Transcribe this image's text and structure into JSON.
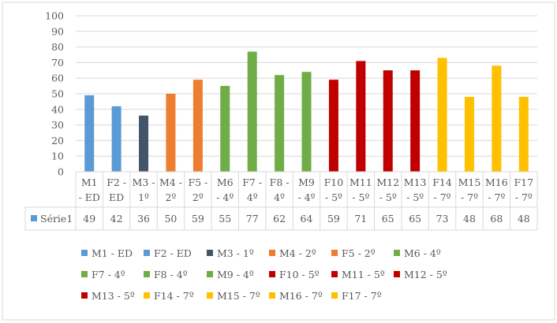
{
  "chart_data": {
    "type": "bar",
    "categories": [
      [
        "M1",
        "- ED"
      ],
      [
        "F2 -",
        "ED"
      ],
      [
        "M3 -",
        "1º"
      ],
      [
        "M4 -",
        "2º"
      ],
      [
        "F5 -",
        "2º"
      ],
      [
        "M6",
        "- 4º"
      ],
      [
        "F7 -",
        "4º"
      ],
      [
        "F8 -",
        "4º"
      ],
      [
        "M9",
        "- 4º"
      ],
      [
        "F10",
        "- 5º"
      ],
      [
        "M11",
        "- 5º"
      ],
      [
        "M12",
        "- 5º"
      ],
      [
        "M13",
        "- 5º"
      ],
      [
        "F14",
        "- 7º"
      ],
      [
        "M15",
        "- 7º"
      ],
      [
        "M16",
        "- 7º"
      ],
      [
        "F17",
        "- 7º"
      ]
    ],
    "series": [
      {
        "name": "Série1",
        "values": [
          49,
          42,
          36,
          50,
          59,
          55,
          77,
          62,
          64,
          59,
          71,
          65,
          65,
          73,
          48,
          68,
          48
        ]
      }
    ],
    "colors": [
      "#5B9BD5",
      "#5B9BD5",
      "#44546A",
      "#ED7D31",
      "#ED7D31",
      "#70AD47",
      "#70AD47",
      "#70AD47",
      "#70AD47",
      "#C00000",
      "#C00000",
      "#C00000",
      "#C00000",
      "#FFC000",
      "#FFC000",
      "#FFC000",
      "#FFC000"
    ],
    "y_ticks": [
      "0",
      "10",
      "20",
      "30",
      "40",
      "50",
      "60",
      "70",
      "80",
      "90",
      "100"
    ],
    "ylim": [
      0,
      100
    ],
    "grid": true,
    "data_table": true,
    "legend": {
      "placement": "bottom",
      "entries": [
        "M1 - ED",
        "F2 - ED",
        "M3 - 1º",
        "M4 - 2º",
        "F5 - 2º",
        "M6 - 4º",
        "F7 - 4º",
        "F8 - 4º",
        "M9 - 4º",
        "F10 - 5º",
        "M11 - 5º",
        "M12 - 5º",
        "M13 - 5º",
        "F14 - 7º",
        "M15 - 7º",
        "M16 - 7º",
        "F17 - 7º"
      ]
    }
  }
}
